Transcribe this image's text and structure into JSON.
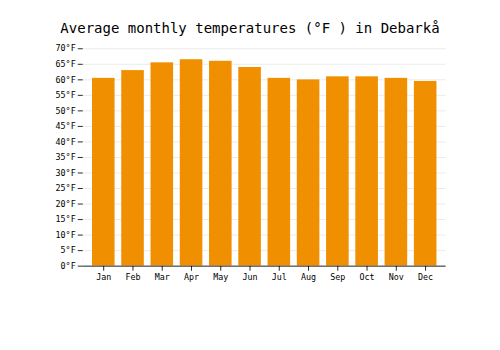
{
  "chart_data": {
    "type": "bar",
    "title": "Average monthly temperatures (°F ) in Debarkå",
    "categories": [
      "Jan",
      "Feb",
      "Mar",
      "Apr",
      "May",
      "Jun",
      "Jul",
      "Aug",
      "Sep",
      "Oct",
      "Nov",
      "Dec"
    ],
    "values": [
      60.5,
      63.0,
      65.5,
      66.5,
      66.0,
      64.0,
      60.5,
      60.0,
      61.0,
      61.0,
      60.5,
      59.5
    ],
    "color": "#F09000",
    "ylim": [
      0,
      70
    ],
    "yticks": [
      {
        "value": 0,
        "label": "0°F"
      },
      {
        "value": 5,
        "label": "5°F"
      },
      {
        "value": 10,
        "label": "10°F"
      },
      {
        "value": 15,
        "label": "15°F"
      },
      {
        "value": 20,
        "label": "20°F"
      },
      {
        "value": 25,
        "label": "25°F"
      },
      {
        "value": 30,
        "label": "30°F"
      },
      {
        "value": 35,
        "label": "35°F"
      },
      {
        "value": 40,
        "label": "40°F"
      },
      {
        "value": 45,
        "label": "45°F"
      },
      {
        "value": 50,
        "label": "50°F"
      },
      {
        "value": 55,
        "label": "55°F"
      },
      {
        "value": 60,
        "label": "60°F"
      },
      {
        "value": 65,
        "label": "65°F"
      },
      {
        "value": 70,
        "label": "70°F"
      }
    ],
    "grid": true
  }
}
